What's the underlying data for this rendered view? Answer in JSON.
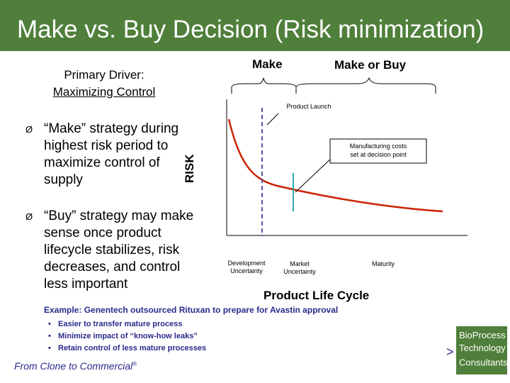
{
  "title": "Make vs. Buy Decision (Risk minimization)",
  "driver": {
    "line1": "Primary Driver:",
    "line2": "Maximizing Control"
  },
  "phases": {
    "make": "Make",
    "make_or_buy": "Make or Buy"
  },
  "bullets": [
    {
      "marker": "Ø",
      "text": "“Make” strategy during highest risk period to maximize control of supply"
    },
    {
      "marker": "Ø",
      "text": "“Buy” strategy may make sense once product lifecycle stabilizes, risk decreases, and control less important"
    }
  ],
  "diagram": {
    "y_axis_label": "RISK",
    "x_axis_label": "Product Life Cycle",
    "product_launch": "Product Launch",
    "manufacturing_line1": "Manufacturing costs",
    "manufacturing_line2": "set at decision point",
    "stages": [
      {
        "line1": "Development",
        "line2": "Uncertainty"
      },
      {
        "line1": "Market",
        "line2": "Uncertainty"
      },
      {
        "line1": "Maturity",
        "line2": ""
      }
    ],
    "colors": {
      "curve": "#cc2200",
      "launch_line": "#5555aa",
      "decision_line": "#33aaaa"
    }
  },
  "example": "Example: Genentech outsourced Rituxan to prepare for Avastin approval",
  "sub_bullets": [
    "Easier to transfer mature process",
    "Minimize impact of “know-how leaks”",
    "Retain control of less mature processes"
  ],
  "footer": {
    "text": "From Clone to Commercial",
    "mark": "®"
  },
  "logo": {
    "line1": "BioProcess",
    "line2": "Technology",
    "line3": "Consultants",
    "mark": "®",
    "arrow": ">"
  }
}
